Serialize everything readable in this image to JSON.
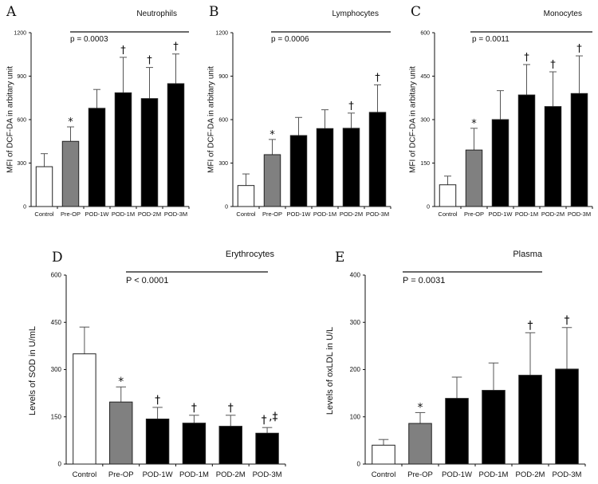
{
  "figure": {
    "colors": {
      "control": "#ffffff",
      "preop": "#808080",
      "pod": "#000000",
      "error": "#555555",
      "axis": "#111111"
    }
  },
  "chart_data": [
    {
      "panel": "A",
      "type": "bar",
      "title": "Neutrophils",
      "ylabel": "MFI of DCF-DA in arbitary unit",
      "ylim": [
        0,
        1200
      ],
      "yticks": [
        "0",
        "300",
        "600",
        "900",
        "1200"
      ],
      "categories": [
        "Control",
        "Pre-OP",
        "POD-1W",
        "POD-1M",
        "POD-2M",
        "POD-3M"
      ],
      "values": [
        275,
        450,
        678,
        785,
        745,
        848
      ],
      "errors": [
        90,
        100,
        130,
        245,
        215,
        205
      ],
      "markers": [
        "",
        "*",
        "",
        "†",
        "†",
        "†"
      ],
      "pvalue": "p = 0.0003"
    },
    {
      "panel": "B",
      "type": "bar",
      "title": "Lymphocytes",
      "ylabel": "MFI of DCF-DA in arbitary unit",
      "ylim": [
        0,
        1200
      ],
      "yticks": [
        "0",
        "300",
        "600",
        "900",
        "1200"
      ],
      "categories": [
        "Control",
        "Pre-OP",
        "POD-1W",
        "POD-1M",
        "POD-2M",
        "POD-3M"
      ],
      "values": [
        145,
        358,
        490,
        538,
        540,
        650
      ],
      "errors": [
        80,
        105,
        125,
        130,
        105,
        190
      ],
      "markers": [
        "",
        "*",
        "",
        "",
        "†",
        "†"
      ],
      "pvalue": "p = 0.0006"
    },
    {
      "panel": "C",
      "type": "bar",
      "title": "Monocytes",
      "ylabel": "MFI of DCF-DA in arbitary unit",
      "ylim": [
        0,
        600
      ],
      "yticks": [
        "0",
        "150",
        "300",
        "450",
        "600"
      ],
      "categories": [
        "Control",
        "Pre-OP",
        "POD-1W",
        "POD-1M",
        "POD-2M",
        "POD-3M"
      ],
      "values": [
        75,
        195,
        300,
        385,
        345,
        390
      ],
      "errors": [
        30,
        75,
        100,
        105,
        120,
        130
      ],
      "markers": [
        "",
        "*",
        "",
        "†",
        "†",
        "†"
      ],
      "pvalue": "p = 0.0011"
    },
    {
      "panel": "D",
      "type": "bar",
      "title": "Erythrocytes",
      "ylabel": "Levels of SOD in U/mL",
      "ylim": [
        0,
        600
      ],
      "yticks": [
        "0",
        "150",
        "300",
        "450",
        "600"
      ],
      "categories": [
        "Control",
        "Pre-OP",
        "POD-1W",
        "POD-1M",
        "POD-2M",
        "POD-3M"
      ],
      "values": [
        350,
        197,
        143,
        130,
        120,
        98
      ],
      "errors": [
        85,
        48,
        37,
        25,
        35,
        18
      ],
      "markers": [
        "",
        "*",
        "†",
        "†",
        "†",
        "†,‡"
      ],
      "pvalue": "P < 0.0001"
    },
    {
      "panel": "E",
      "type": "bar",
      "title": "Plasma",
      "ylabel": "Levels of oxLDL in U/L",
      "ylim": [
        0,
        400
      ],
      "yticks": [
        "0",
        "100",
        "200",
        "300",
        "400"
      ],
      "categories": [
        "Control",
        "Pre-OP",
        "POD-1W",
        "POD-1M",
        "POD-2M",
        "POD-3M"
      ],
      "values": [
        40,
        86,
        139,
        156,
        188,
        201
      ],
      "errors": [
        12,
        23,
        45,
        58,
        90,
        88
      ],
      "markers": [
        "",
        "*",
        "",
        "",
        "†",
        "†"
      ],
      "pvalue": "P = 0.0031"
    }
  ]
}
